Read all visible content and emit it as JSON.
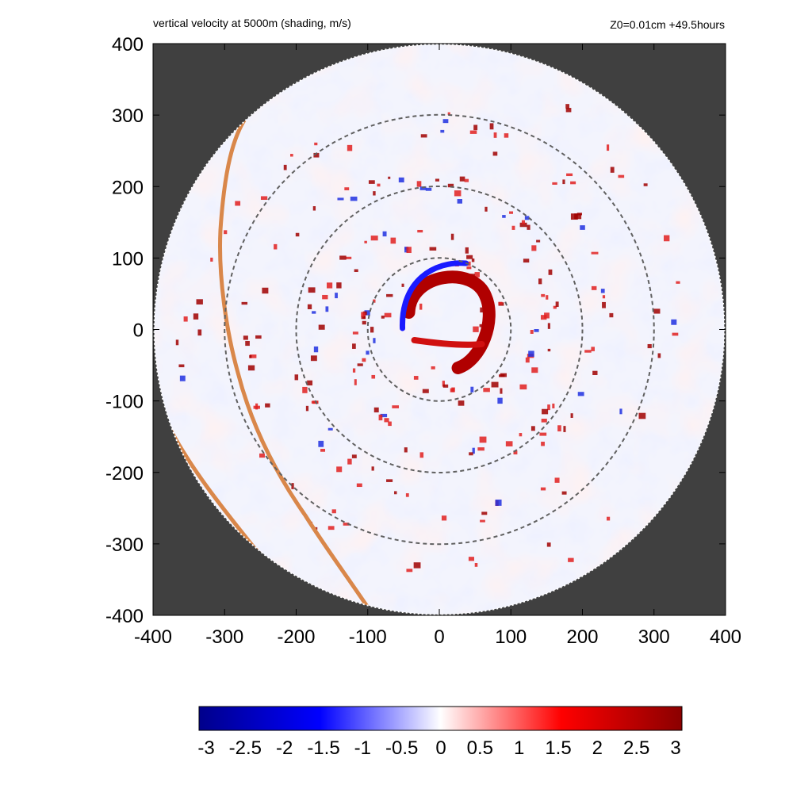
{
  "chart_data": {
    "type": "heatmap",
    "title": "vertical velocity at 5000m (shading, m/s)",
    "subtitle": "Z0=0.01cm  +49.5hours",
    "xlabel": "",
    "ylabel": "",
    "xlim": [
      -400,
      400
    ],
    "ylim": [
      -400,
      400
    ],
    "x_ticks": [
      "-400",
      "-300",
      "-200",
      "-100",
      "0",
      "100",
      "200",
      "300",
      "400"
    ],
    "y_ticks": [
      "400",
      "300",
      "200",
      "100",
      "0",
      "-100",
      "-200",
      "-300",
      "-400"
    ],
    "field_domain_radius": 400,
    "masked_color": "#404040",
    "range_rings": [
      100,
      200,
      300
    ],
    "colorbar": {
      "min": -3,
      "max": 3,
      "tick_labels": [
        "-3",
        "-2.5",
        "-2",
        "-1.5",
        "-1",
        "-0.5",
        "0",
        "0.5",
        "1",
        "1.5",
        "2",
        "2.5",
        "3"
      ],
      "colors": [
        "#00008b",
        "#0000ff",
        "#ffffff",
        "#ff0000",
        "#8b0000"
      ]
    },
    "features": {
      "eyewall_updraft": {
        "center": [
          15,
          35
        ],
        "description_value_ms": 3
      },
      "eye_downdraft_edge": {
        "center": [
          -35,
          20
        ],
        "value_ms": -3
      }
    },
    "coastline_color": "#d9874a",
    "grid": false,
    "legend": "colorbar-bottom"
  }
}
